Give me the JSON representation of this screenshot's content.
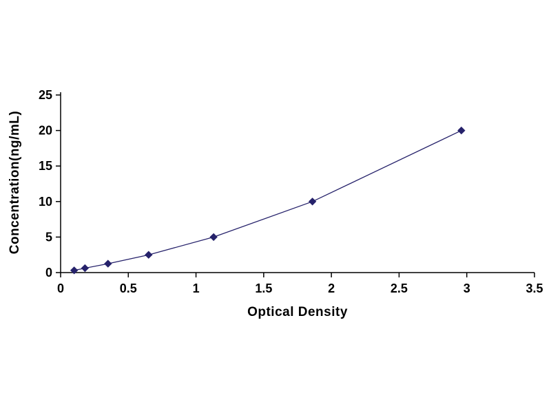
{
  "chart_data": {
    "type": "line",
    "title": "",
    "xlabel": "Optical Density",
    "ylabel": "Concentration(ng/mL)",
    "x": [
      0.1,
      0.18,
      0.35,
      0.65,
      1.13,
      1.86,
      2.96
    ],
    "y": [
      0.31,
      0.625,
      1.25,
      2.5,
      5,
      10,
      20
    ],
    "xlim": [
      0,
      3.5
    ],
    "ylim": [
      0,
      25
    ],
    "x_ticks": [
      0,
      0.5,
      1,
      1.5,
      2,
      2.5,
      3,
      3.5
    ],
    "x_tick_labels": [
      "0",
      "0.5",
      "1",
      "1.5",
      "2",
      "2.5",
      "3",
      "3.5"
    ],
    "y_ticks": [
      0,
      5,
      10,
      15,
      20,
      25
    ],
    "y_tick_labels": [
      "0",
      "5",
      "10",
      "15",
      "20",
      "25"
    ],
    "grid": false,
    "legend": "none",
    "marker": "diamond",
    "series_color": "#26226b",
    "axis_color": "#000000",
    "background_color": "#ffffff"
  }
}
